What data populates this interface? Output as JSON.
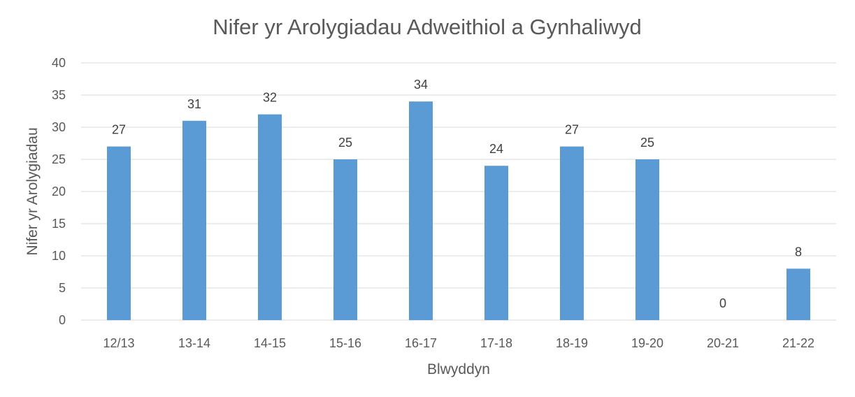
{
  "chart_data": {
    "type": "bar",
    "title": "Nifer yr Arolygiadau Adweithiol a Gynhaliwyd",
    "xlabel": "Blwyddyn",
    "ylabel": "Nifer yr Arolygiadau",
    "categories": [
      "12/13",
      "13-14",
      "14-15",
      "15-16",
      "16-17",
      "17-18",
      "18-19",
      "19-20",
      "20-21",
      "21-22"
    ],
    "values": [
      27,
      31,
      32,
      25,
      34,
      24,
      27,
      25,
      0,
      8
    ],
    "ylim": [
      0,
      40
    ],
    "yticks": [
      0,
      5,
      10,
      15,
      20,
      25,
      30,
      35,
      40
    ],
    "grid": true,
    "legend": "none",
    "bar_color": "#5b9bd5",
    "data_labels": true
  }
}
